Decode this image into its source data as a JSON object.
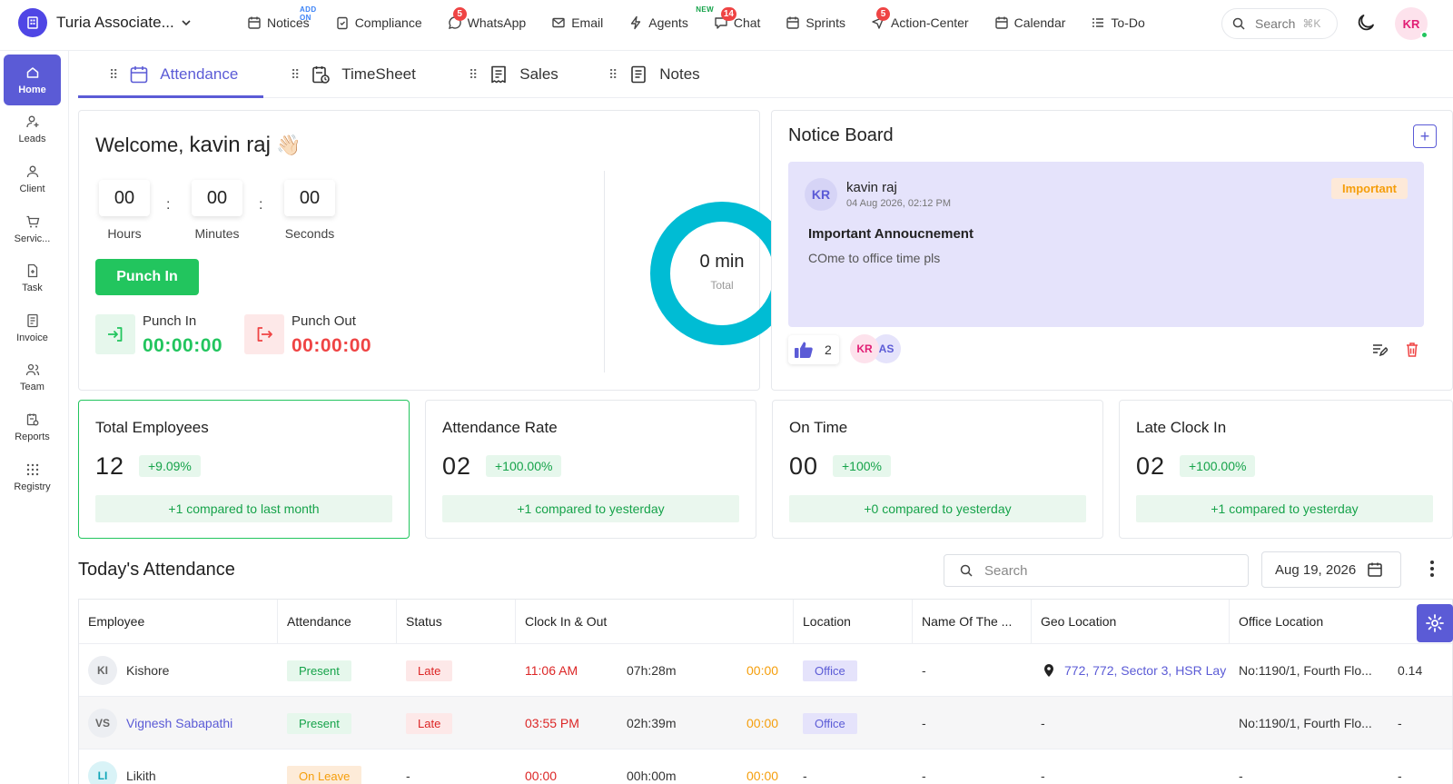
{
  "brand": {
    "name": "Turia Associate..."
  },
  "nav": [
    {
      "label": "Notices",
      "icon": "calendar-note-icon",
      "sup": "ADD ON"
    },
    {
      "label": "Compliance",
      "icon": "clipboard-check-icon"
    },
    {
      "label": "WhatsApp",
      "icon": "whatsapp-icon",
      "badge": "5"
    },
    {
      "label": "Email",
      "icon": "mail-icon"
    },
    {
      "label": "Agents",
      "icon": "lightning-icon",
      "sup": "NEW"
    },
    {
      "label": "Chat",
      "icon": "chat-icon",
      "badge": "14"
    },
    {
      "label": "Sprints",
      "icon": "calendar-icon"
    },
    {
      "label": "Action-Center",
      "icon": "send-icon",
      "badge": "5"
    },
    {
      "label": "Calendar",
      "icon": "calendar-icon"
    },
    {
      "label": "To-Do",
      "icon": "list-icon"
    }
  ],
  "search": {
    "placeholder": "Search",
    "shortcut": "⌘K"
  },
  "user": {
    "initials": "KR"
  },
  "sidebar": [
    {
      "label": "Home",
      "icon": "home-icon",
      "active": true
    },
    {
      "label": "Leads",
      "icon": "user-plus-icon"
    },
    {
      "label": "Client",
      "icon": "user-icon"
    },
    {
      "label": "Servic...",
      "icon": "cart-icon"
    },
    {
      "label": "Task",
      "icon": "task-icon"
    },
    {
      "label": "Invoice",
      "icon": "invoice-icon"
    },
    {
      "label": "Team",
      "icon": "team-icon"
    },
    {
      "label": "Reports",
      "icon": "reports-icon"
    },
    {
      "label": "Registry",
      "icon": "grid-icon"
    }
  ],
  "tabs": [
    {
      "label": "Attendance",
      "icon": "calendar-icon",
      "active": true
    },
    {
      "label": "TimeSheet",
      "icon": "timesheet-icon"
    },
    {
      "label": "Sales",
      "icon": "receipt-icon"
    },
    {
      "label": "Notes",
      "icon": "note-icon"
    }
  ],
  "welcome": {
    "greeting": "Welcome,",
    "name": "kavin raj",
    "emoji": "👋🏻",
    "timer": {
      "hours": "00",
      "minutes": "00",
      "seconds": "00"
    },
    "labels": {
      "hours": "Hours",
      "minutes": "Minutes",
      "seconds": "Seconds"
    },
    "punch_button": "Punch In",
    "punch_in_label": "Punch In",
    "punch_in_time": "00:00:00",
    "punch_out_label": "Punch Out",
    "punch_out_time": "00:00:00",
    "donut_value": "0 min",
    "donut_label": "Total",
    "accent": "#00bcd4"
  },
  "notice_board": {
    "title": "Notice Board",
    "author": "kavin raj",
    "author_initials": "KR",
    "date": "04 Aug 2026, 02:12 PM",
    "tag": "Important",
    "heading": "Important Annoucnement",
    "body": "COme to office time pls",
    "likes": "2",
    "reactors": [
      "KR",
      "AS"
    ]
  },
  "stats": [
    {
      "title": "Total Employees",
      "value": "12",
      "change": "+9.09%",
      "footer": "+1 compared to last month"
    },
    {
      "title": "Attendance Rate",
      "value": "02",
      "change": "+100.00%",
      "footer": "+1 compared to yesterday"
    },
    {
      "title": "On Time",
      "value": "00",
      "change": "+100%",
      "footer": "+0 compared to yesterday"
    },
    {
      "title": "Late Clock In",
      "value": "02",
      "change": "+100.00%",
      "footer": "+1 compared to yesterday"
    }
  ],
  "attendance_table": {
    "title": "Today's Attendance",
    "search_placeholder": "Search",
    "date": "Aug 19, 2026",
    "columns": [
      "Employee",
      "Attendance",
      "Status",
      "Clock In & Out",
      "Location",
      "Name Of The ...",
      "Geo Location",
      "Office Location"
    ],
    "rows": [
      {
        "initials": "KI",
        "name": "Kishore",
        "attendance": "Present",
        "status": "Late",
        "clock_in": "11:06 AM",
        "duration": "07h:28m",
        "clock_out": "00:00",
        "location": "Office",
        "name_of": "-",
        "geo": "772, 772, Sector 3, HSR Lay",
        "office": "No:1190/1, Fourth Flo...",
        "extra": "0.14"
      },
      {
        "initials": "VS",
        "name": "Vignesh Sabapathi",
        "attendance": "Present",
        "status": "Late",
        "clock_in": "03:55 PM",
        "duration": "02h:39m",
        "clock_out": "00:00",
        "location": "Office",
        "name_of": "-",
        "geo": "-",
        "office": "No:1190/1, Fourth Flo...",
        "extra": "-"
      },
      {
        "initials": "LI",
        "name": "Likith",
        "attendance": "On Leave",
        "status": "-",
        "clock_in": "00:00",
        "duration": "00h:00m",
        "clock_out": "00:00",
        "location": "-",
        "name_of": "-",
        "geo": "-",
        "office": "-",
        "extra": "-"
      }
    ]
  },
  "colors": {
    "primary": "#5b5bd6",
    "success": "#22c55e",
    "danger": "#dc2626",
    "warning": "#f59e0b"
  }
}
